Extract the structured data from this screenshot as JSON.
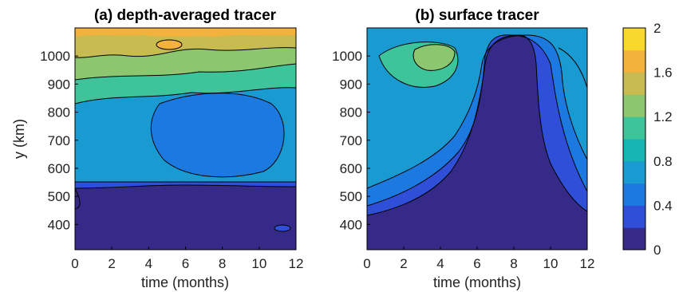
{
  "chart_data": [
    {
      "type": "heatmap",
      "title": "(a) depth-averaged tracer",
      "xlabel": "time (months)",
      "ylabel": "y (km)",
      "xlim": [
        0,
        12
      ],
      "ylim": [
        310,
        1100
      ],
      "xticks": [
        "0",
        "2",
        "4",
        "6",
        "8",
        "10",
        "12"
      ],
      "yticks": [
        "400",
        "500",
        "600",
        "700",
        "800",
        "900",
        "1000"
      ],
      "contour_levels": [
        0.2,
        0.4,
        0.6,
        0.8,
        1.0,
        1.2,
        1.4,
        1.6,
        1.8
      ],
      "features": [
        {
          "description": "low region below",
          "y_km": 540,
          "value": 0.15
        },
        {
          "description": "blue band",
          "y_range_km": [
            450,
            540
          ],
          "value": 0.4
        },
        {
          "description": "central low patch",
          "x_month": 7.5,
          "y_km": 720,
          "value": 0.5
        },
        {
          "description": "northern high band",
          "y_km": 1060,
          "value": 1.7
        }
      ]
    },
    {
      "type": "heatmap",
      "title": "(b) surface tracer",
      "xlabel": "time (months)",
      "ylabel": "",
      "xlim": [
        0,
        12
      ],
      "ylim": [
        310,
        1100
      ],
      "xticks": [
        "0",
        "2",
        "4",
        "6",
        "8",
        "10",
        "12"
      ],
      "yticks": [
        "400",
        "500",
        "600",
        "700",
        "800",
        "900",
        "1000"
      ],
      "contour_levels": [
        0.2,
        0.4,
        0.6,
        0.8,
        1.0,
        1.2,
        1.4,
        1.6
      ],
      "features": [
        {
          "description": "low plume",
          "x_month": 8,
          "y_range_km": [
            310,
            1080
          ],
          "value": 0.1
        },
        {
          "description": "northwest high patch",
          "x_month": 3.5,
          "y_km": 1010,
          "value": 1.5
        }
      ]
    }
  ],
  "colorbar": {
    "ticks": [
      "0",
      "0.4",
      "0.8",
      "1.2",
      "1.6",
      "2"
    ],
    "range": [
      0,
      2
    ],
    "colors": [
      "#352a87",
      "#2f4fd8",
      "#1b79e0",
      "#199bd2",
      "#14b5b3",
      "#3ec49a",
      "#8cc66f",
      "#c8bb52",
      "#f3b23c",
      "#f8d82a"
    ]
  }
}
